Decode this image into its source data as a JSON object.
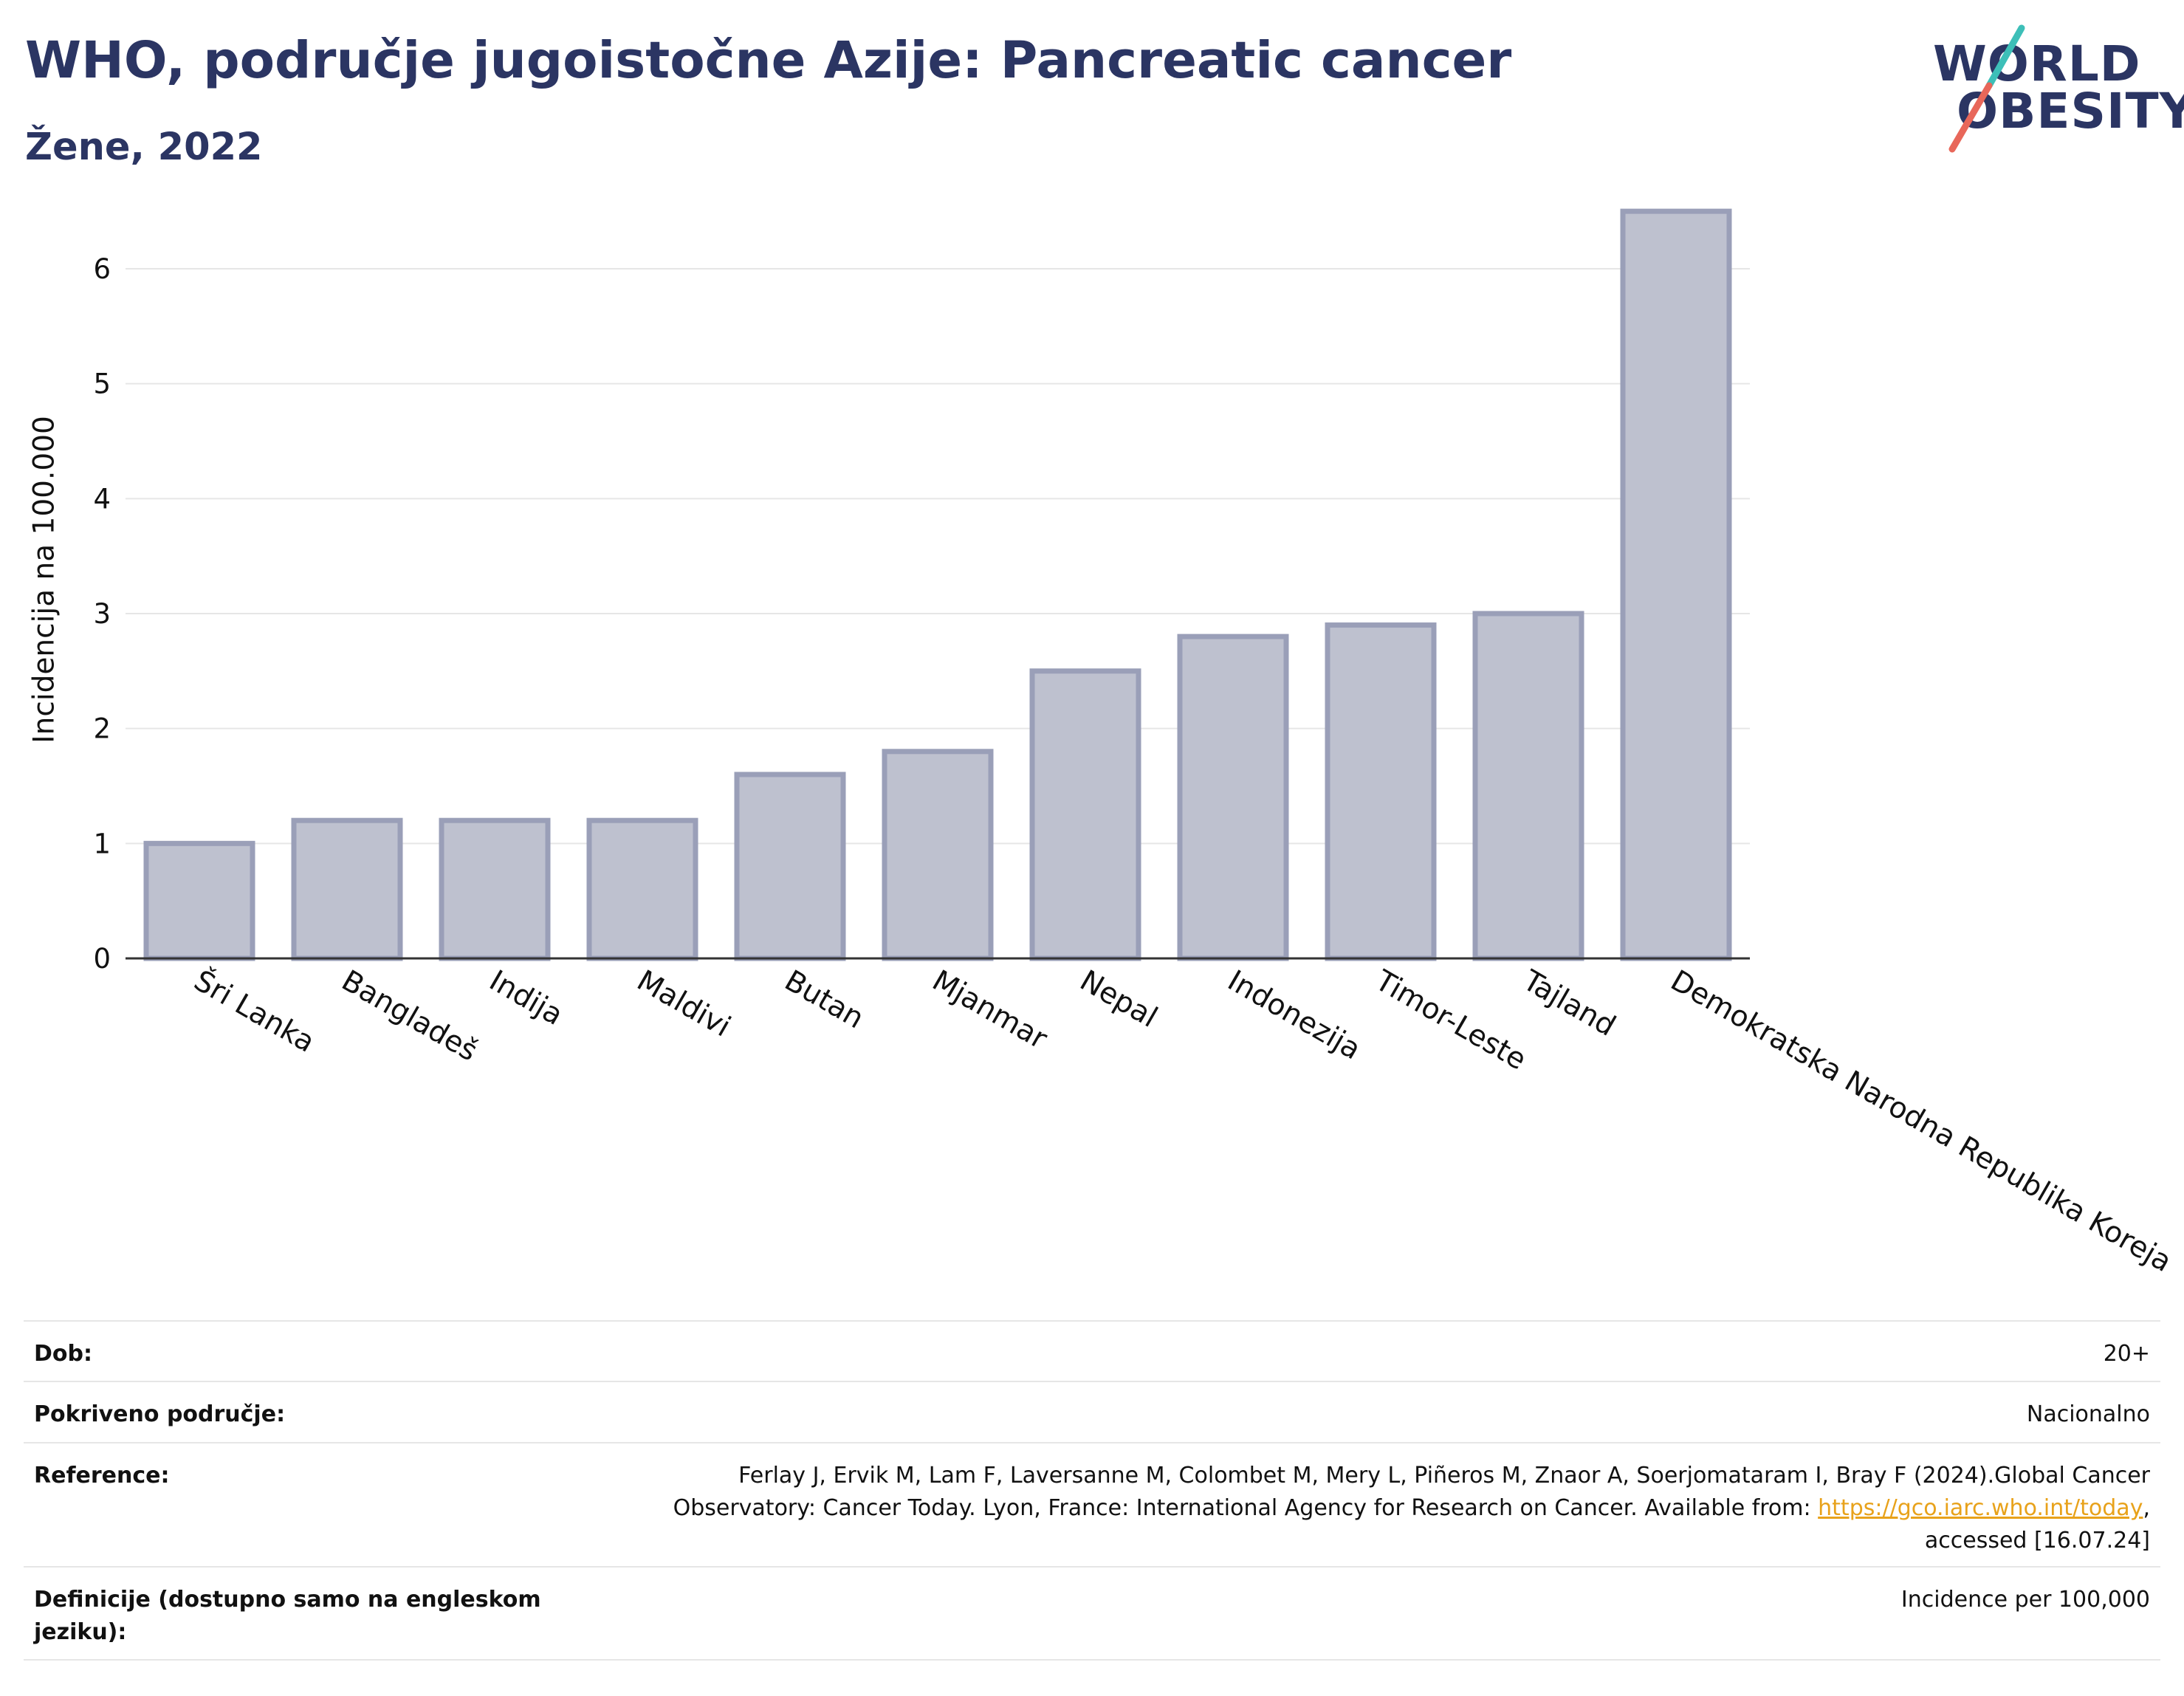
{
  "header": {
    "title": "WHO, područje jugoistočne Azije: Pancreatic cancer",
    "subtitle": "Žene, 2022"
  },
  "logo": {
    "line1": "WORLD",
    "line2": "OBESITY"
  },
  "colors": {
    "title": "#2b3563",
    "bar_fill": "#bec1cf",
    "bar_stroke": "#9a9fb8",
    "grid": "#e6e6e6",
    "axis": "#333333",
    "logo_slash_top": "#3dbfb8",
    "logo_slash_bottom": "#e8675a",
    "link": "#e8a21b"
  },
  "chart_data": {
    "type": "bar",
    "categories": [
      "Šri Lanka",
      "Bangladeš",
      "Indija",
      "Maldivi",
      "Butan",
      "Mjanmar",
      "Nepal",
      "Indonezija",
      "Timor-Leste",
      "Tajland",
      "Demokratska Narodna Republika Koreja"
    ],
    "values": [
      1.0,
      1.2,
      1.2,
      1.2,
      1.6,
      1.8,
      2.5,
      2.8,
      2.9,
      3.0,
      6.5
    ],
    "ylabel": "Incidencija na 100.000",
    "xlabel": "",
    "ylim": [
      0,
      6.7
    ],
    "yticks": [
      0,
      1,
      2,
      3,
      4,
      5,
      6
    ],
    "grid": true,
    "legend": false
  },
  "footer": {
    "rows": [
      {
        "label": "Dob:",
        "value": "20+"
      },
      {
        "label": "Pokriveno područje:",
        "value": "Nacionalno"
      },
      {
        "label": "Reference:",
        "value_line1": "Ferlay J, Ervik M, Lam F, Laversanne M, Colombet M, Mery L, Piñeros M, Znaor A, Soerjomataram I, Bray F (2024).Global Cancer",
        "value_line2_pre": "Observatory: Cancer Today. Lyon, France: International Agency for Research on Cancer. Available from: ",
        "value_link": "https://gco.iarc.who.int/today",
        "value_line2_post": ",",
        "value_line3": "accessed [16.07.24]"
      },
      {
        "label": "Definicije (dostupno samo na engleskom jeziku):",
        "value": "Incidence per 100,000"
      }
    ]
  }
}
